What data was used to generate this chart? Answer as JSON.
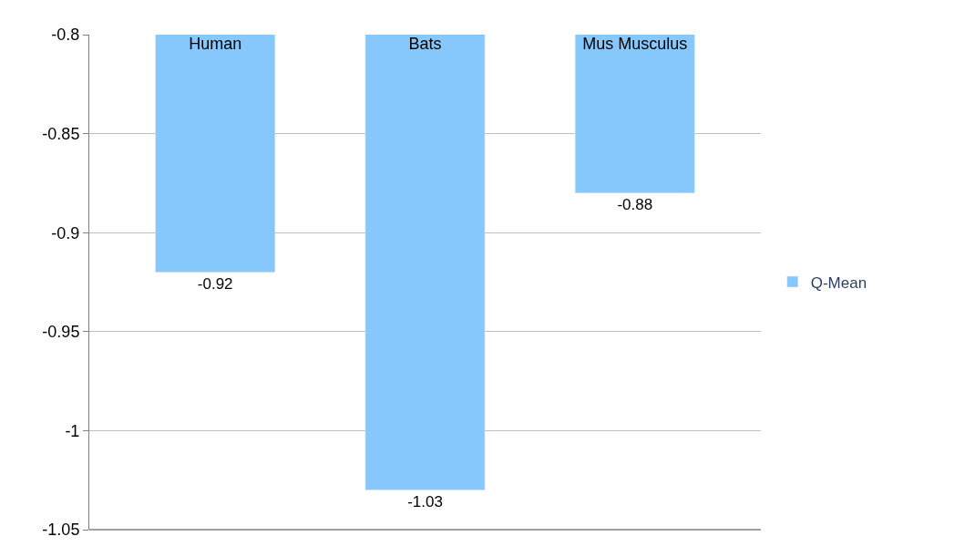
{
  "chart_data": {
    "type": "bar",
    "categories": [
      "Human",
      "Bats",
      "Mus Musculus"
    ],
    "series": [
      {
        "name": "Q-Mean",
        "color": "#87c8fc",
        "values": [
          -0.92,
          -1.03,
          -0.88
        ]
      }
    ],
    "ylim": [
      -1.05,
      -0.8
    ],
    "yticks": [
      -0.8,
      -0.85,
      -0.9,
      -0.95,
      -1,
      -1.05
    ],
    "grid": "y",
    "legend": "right",
    "data_labels": true
  }
}
